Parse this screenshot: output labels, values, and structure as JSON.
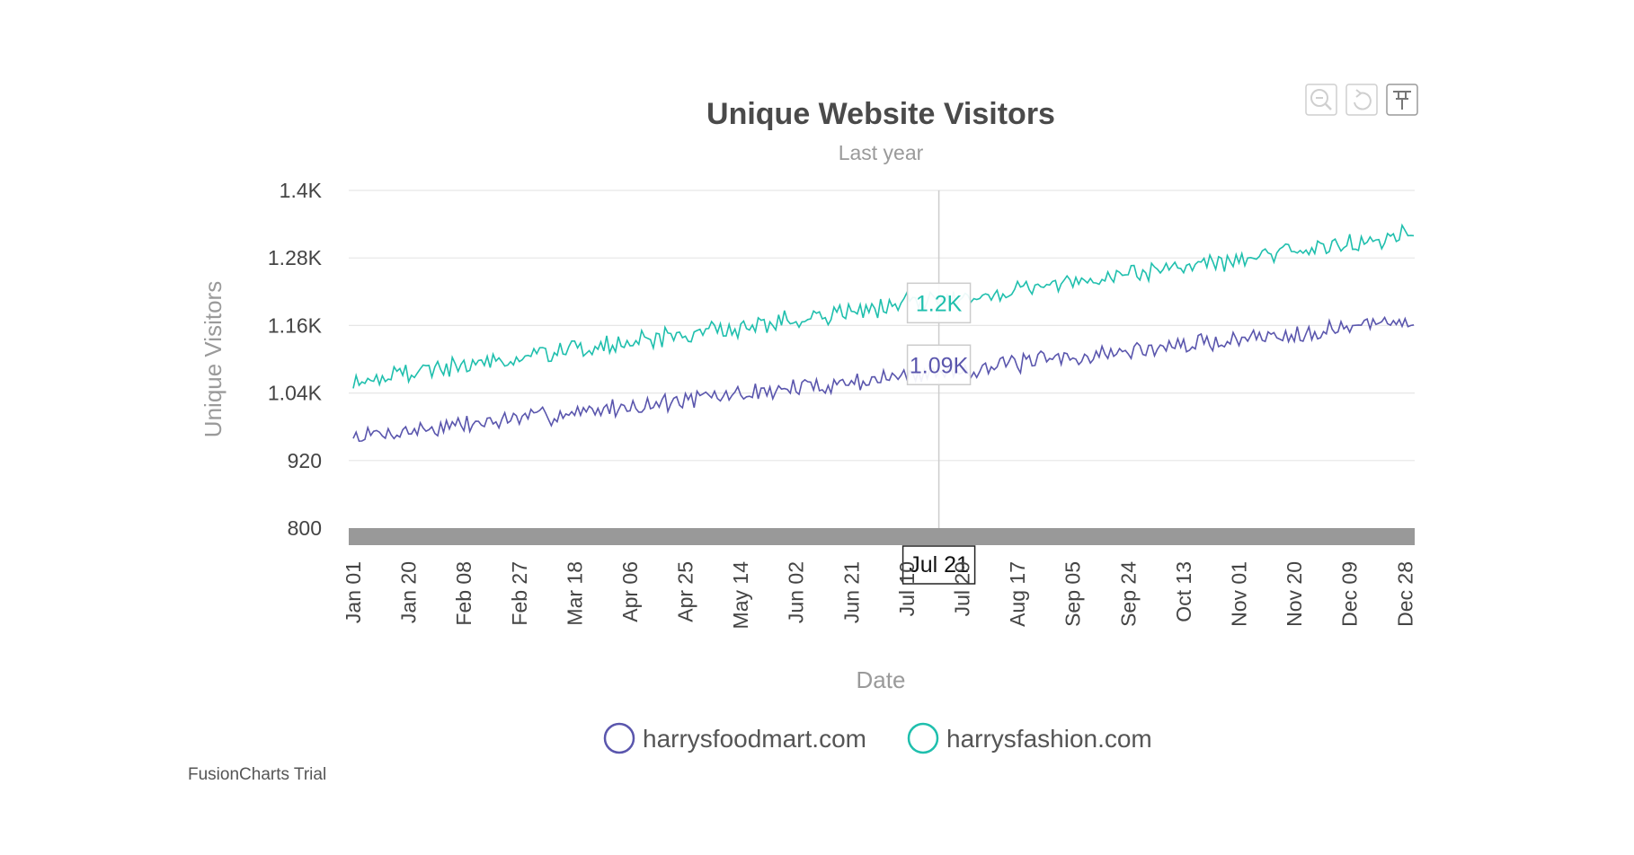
{
  "chart_data": {
    "type": "line",
    "title": "Unique Website Visitors",
    "subtitle": "Last year",
    "xlabel": "Date",
    "ylabel": "Unique Visitors",
    "ylim": [
      800,
      1400
    ],
    "y_ticks": [
      "800",
      "920",
      "1.04K",
      "1.16K",
      "1.28K",
      "1.4K"
    ],
    "y_tick_values": [
      800,
      920,
      1040,
      1160,
      1280,
      1400
    ],
    "x_tick_labels": [
      "Jan 01",
      "Jan 20",
      "Feb 08",
      "Feb 27",
      "Mar 18",
      "Apr 06",
      "Apr 25",
      "May 14",
      "Jun 02",
      "Jun 21",
      "Jul 10",
      "Jul 29",
      "Aug 17",
      "Sep 05",
      "Sep 24",
      "Oct 13",
      "Nov 01",
      "Nov 20",
      "Dec 09",
      "Dec 28"
    ],
    "x_tick_days": [
      0,
      19,
      38,
      57,
      76,
      95,
      114,
      133,
      152,
      171,
      190,
      209,
      228,
      247,
      266,
      285,
      304,
      323,
      342,
      361
    ],
    "x_range_days": [
      0,
      364
    ],
    "legend_position": "bottom",
    "grid": true,
    "crosshair": {
      "date": "Jul 21",
      "day": 201,
      "labels": [
        {
          "series": "harrysfoodmart.com",
          "text": "1.09K",
          "value": 1090
        },
        {
          "series": "harrysfashion.com",
          "text": "1.2K",
          "value": 1200
        }
      ]
    },
    "series": [
      {
        "name": "harrysfoodmart.com",
        "color": "#5a56ad",
        "trend_start": 962,
        "trend_end": 1170,
        "noise": 14,
        "seed": 7
      },
      {
        "name": "harrysfashion.com",
        "color": "#1fbfad",
        "trend_start": 1062,
        "trend_end": 1322,
        "noise": 15,
        "seed": 19
      }
    ]
  },
  "credit": "FusionCharts Trial",
  "toolbar": {
    "zoom_out_icon": "zoom-out-icon",
    "reset_icon": "reset-icon",
    "pin_icon": "pin-icon"
  }
}
